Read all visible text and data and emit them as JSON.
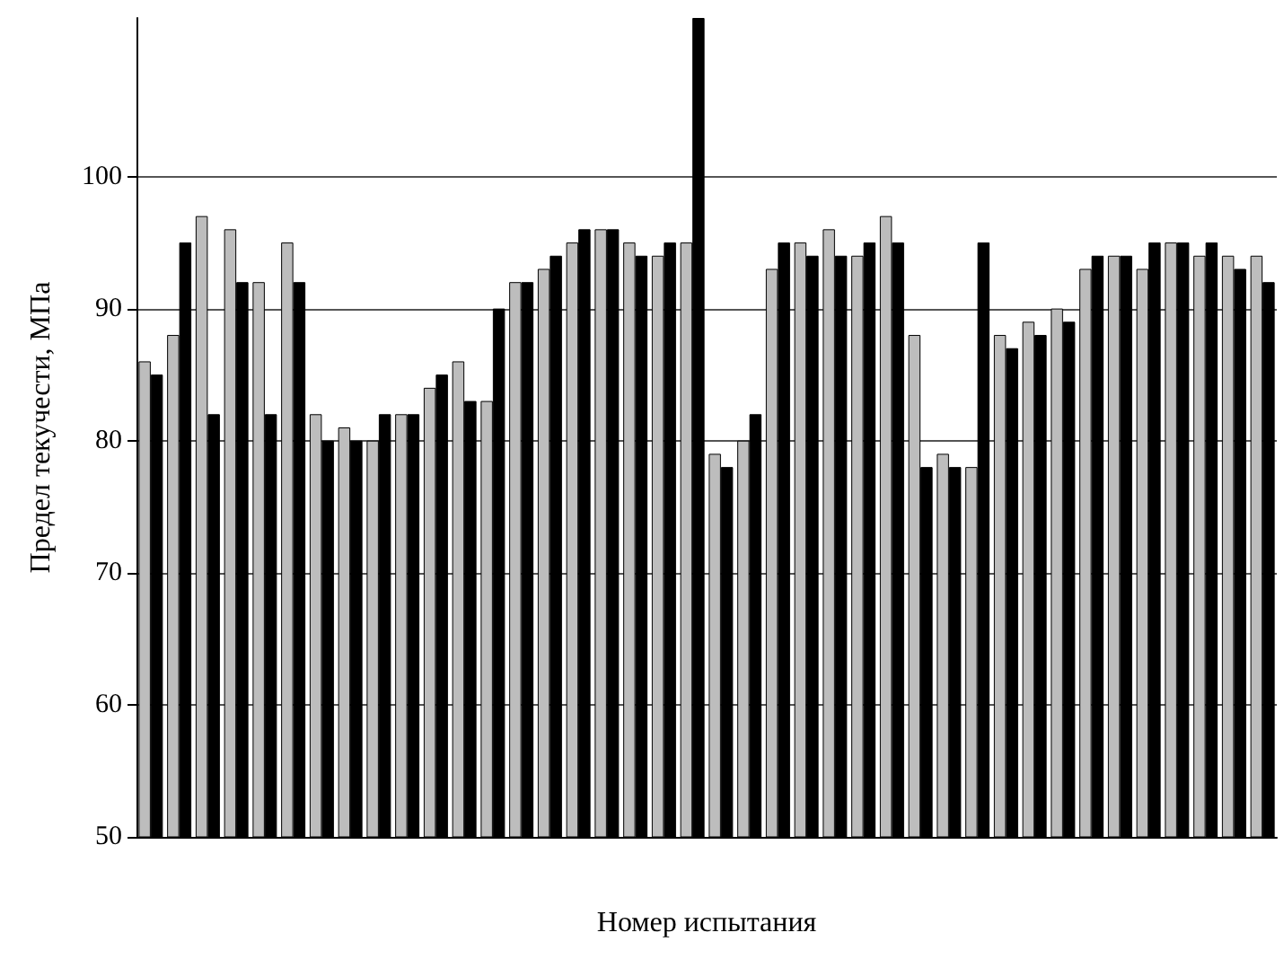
{
  "chart_data": {
    "type": "bar",
    "xlabel": "Номер испытания",
    "ylabel": "Предел текучести, МПа",
    "categories": [
      null,
      null,
      null,
      null,
      null,
      null,
      null,
      null,
      null,
      null,
      null,
      null,
      null,
      null,
      null,
      null,
      null,
      null,
      null,
      null,
      null,
      null,
      null,
      null,
      null,
      null,
      null,
      null,
      null,
      null,
      null,
      null,
      null,
      null,
      null,
      null,
      null,
      null,
      null,
      null
    ],
    "series": [
      {
        "color": "#bdbdbd",
        "values": [
          86,
          88,
          97,
          96,
          92,
          95,
          82,
          81,
          80,
          82,
          84,
          86,
          83,
          92,
          93,
          95,
          96,
          95,
          94,
          95,
          79,
          80,
          93,
          95,
          96,
          94,
          97,
          88,
          79,
          78,
          88,
          89,
          90,
          93,
          94,
          93,
          95,
          94,
          94,
          94
        ]
      },
      {
        "color": "#000000",
        "values": [
          85,
          95,
          82,
          92,
          82,
          92,
          80,
          80,
          82,
          82,
          85,
          83,
          90,
          92,
          94,
          96,
          96,
          94,
          95,
          112,
          78,
          82,
          95,
          94,
          94,
          95,
          95,
          78,
          78,
          95,
          87,
          88,
          89,
          94,
          94,
          95,
          95,
          95,
          93,
          92
        ]
      }
    ],
    "ylim": [
      50,
      112
    ],
    "yticks": [
      50,
      60,
      70,
      80,
      90,
      100
    ],
    "grid": "y"
  }
}
